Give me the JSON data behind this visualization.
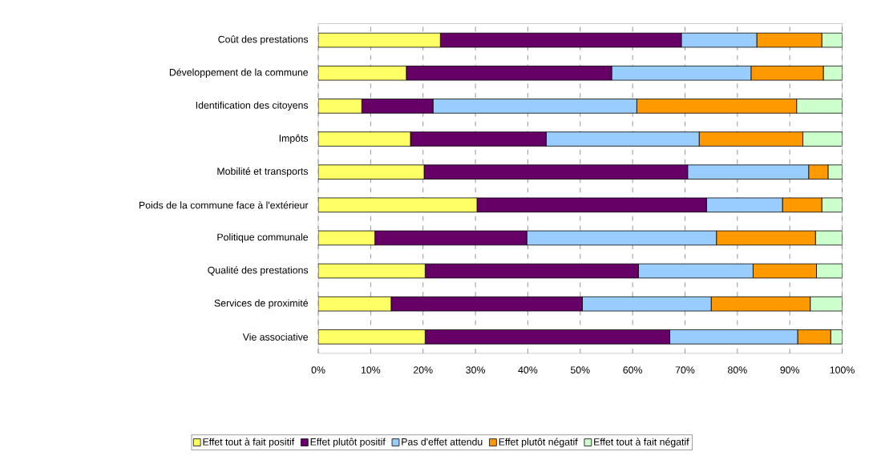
{
  "chart_data": {
    "type": "bar",
    "orientation": "horizontal",
    "stacked": true,
    "categories": [
      "Coût des prestations",
      "Développement de la commune",
      "Identification des citoyens",
      "Impôts",
      "Mobilité et transports",
      "Poids de la commune face à l'extérieur",
      "Politique communale",
      "Qualité des prestations",
      "Services de proximité",
      "Vie associative"
    ],
    "series": [
      {
        "name": "Effet tout à fait positif",
        "color": "#ffff66",
        "values": [
          23.3,
          16.8,
          8.3,
          17.6,
          20.2,
          30.3,
          10.8,
          20.4,
          13.9,
          20.4
        ]
      },
      {
        "name": "Effet plutôt positif",
        "color": "#660066",
        "values": [
          46.0,
          39.2,
          13.6,
          25.9,
          50.3,
          43.8,
          29.0,
          40.7,
          36.5,
          46.7
        ]
      },
      {
        "name": "Pas d'effet attendu",
        "color": "#99ccff",
        "values": [
          14.4,
          26.6,
          38.9,
          29.2,
          23.1,
          14.5,
          36.2,
          21.9,
          24.6,
          24.4
        ]
      },
      {
        "name": "Effet plutôt négatif",
        "color": "#ff9900",
        "values": [
          12.4,
          13.8,
          30.5,
          19.8,
          3.7,
          7.5,
          18.9,
          12.1,
          18.9,
          6.3
        ]
      },
      {
        "name": "Effet tout à fait négatif",
        "color": "#ccffcc",
        "values": [
          3.9,
          3.6,
          8.7,
          7.5,
          2.7,
          3.9,
          5.1,
          4.9,
          6.1,
          2.2
        ]
      }
    ],
    "xlim": [
      0,
      100
    ],
    "xticks": [
      {
        "value": 0,
        "label": "0%"
      },
      {
        "value": 10,
        "label": "10%"
      },
      {
        "value": 20,
        "label": "20%"
      },
      {
        "value": 30,
        "label": "30%"
      },
      {
        "value": 40,
        "label": "40%"
      },
      {
        "value": 50,
        "label": "50%"
      },
      {
        "value": 60,
        "label": "60%"
      },
      {
        "value": 70,
        "label": "70%"
      },
      {
        "value": 80,
        "label": "80%"
      },
      {
        "value": 90,
        "label": "90%"
      },
      {
        "value": 100,
        "label": "100%"
      }
    ],
    "grid": "x",
    "legend": "bottom"
  }
}
